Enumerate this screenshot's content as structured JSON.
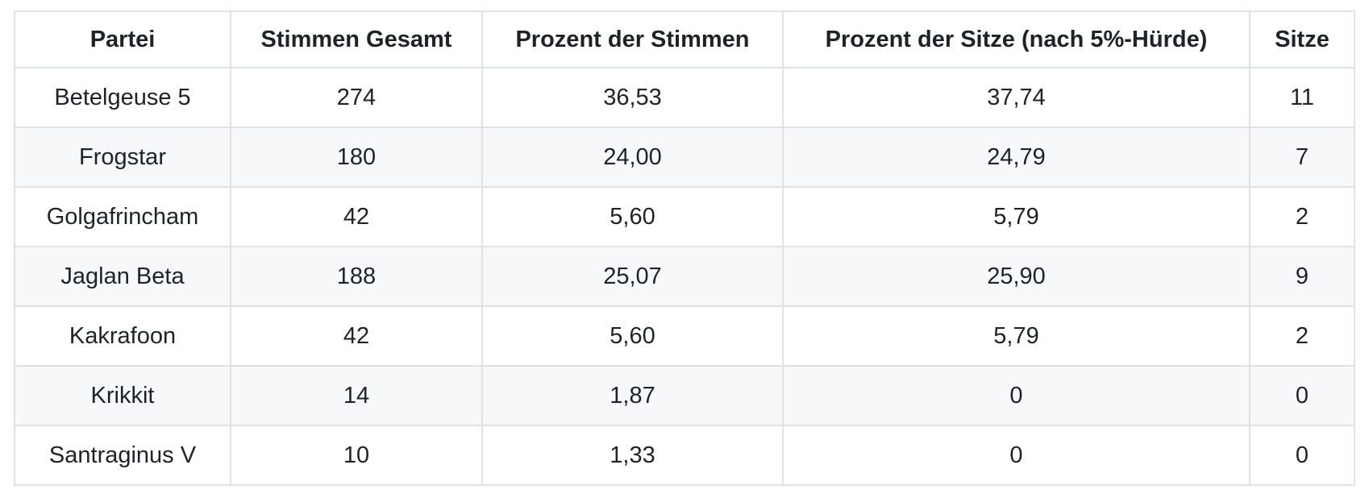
{
  "chart_data": {
    "type": "table",
    "columns": [
      "Partei",
      "Stimmen Gesamt",
      "Prozent der Stimmen",
      "Prozent der Sitze (nach 5%-Hürde)",
      "Sitze"
    ],
    "rows": [
      [
        "Betelgeuse 5",
        "274",
        "36,53",
        "37,74",
        "11"
      ],
      [
        "Frogstar",
        "180",
        "24,00",
        "24,79",
        "7"
      ],
      [
        "Golgafrincham",
        "42",
        "5,60",
        "5,79",
        "2"
      ],
      [
        "Jaglan Beta",
        "188",
        "25,07",
        "25,90",
        "9"
      ],
      [
        "Kakrafoon",
        "42",
        "5,60",
        "5,79",
        "2"
      ],
      [
        "Krikkit",
        "14",
        "1,87",
        "0",
        "0"
      ],
      [
        "Santraginus V",
        "10",
        "1,33",
        "0",
        "0"
      ]
    ],
    "layout": {
      "striped_rows": "even",
      "cell_alignment": "center",
      "header_bold": true
    }
  },
  "colors": {
    "background": "#ffffff",
    "stripe": "#f6f8fa",
    "border": "#dfe2e5",
    "text": "#1f2328"
  }
}
